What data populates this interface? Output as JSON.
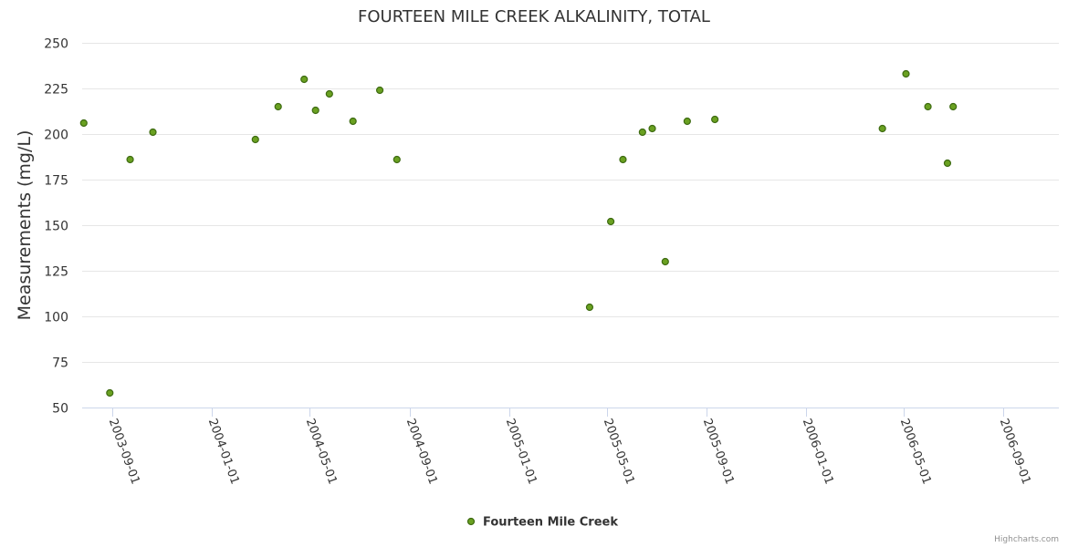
{
  "chart_data": {
    "type": "scatter",
    "title": "FOURTEEN MILE CREEK ALKALINITY, TOTAL",
    "ylabel": "Measurements (mg/L)",
    "ylim": [
      50,
      250
    ],
    "yticks": [
      50,
      75,
      100,
      125,
      150,
      175,
      200,
      225,
      250
    ],
    "xlim": [
      "2003-07-26",
      "2006-11-08"
    ],
    "xticks": [
      "2003-09-01",
      "2004-01-01",
      "2004-05-01",
      "2004-09-01",
      "2005-01-01",
      "2005-05-01",
      "2005-09-01",
      "2006-01-01",
      "2006-05-01",
      "2006-09-01"
    ],
    "grid": true,
    "legend_position": "bottom-center",
    "series": [
      {
        "name": "Fourteen Mile Creek",
        "color": "#6aa121",
        "points": [
          {
            "x": "2003-07-28",
            "y": 206
          },
          {
            "x": "2003-08-29",
            "y": 58
          },
          {
            "x": "2003-09-23",
            "y": 186
          },
          {
            "x": "2003-10-21",
            "y": 201
          },
          {
            "x": "2004-02-24",
            "y": 197
          },
          {
            "x": "2004-03-23",
            "y": 215
          },
          {
            "x": "2004-04-24",
            "y": 230
          },
          {
            "x": "2004-05-08",
            "y": 213
          },
          {
            "x": "2004-05-25",
            "y": 222
          },
          {
            "x": "2004-06-23",
            "y": 207
          },
          {
            "x": "2004-07-26",
            "y": 224
          },
          {
            "x": "2004-08-16",
            "y": 186
          },
          {
            "x": "2005-04-10",
            "y": 105
          },
          {
            "x": "2005-05-06",
            "y": 152
          },
          {
            "x": "2005-05-21",
            "y": 186
          },
          {
            "x": "2005-06-14",
            "y": 201
          },
          {
            "x": "2005-06-26",
            "y": 203
          },
          {
            "x": "2005-07-12",
            "y": 130
          },
          {
            "x": "2005-08-08",
            "y": 207
          },
          {
            "x": "2005-09-11",
            "y": 208
          },
          {
            "x": "2006-04-05",
            "y": 203
          },
          {
            "x": "2006-05-04",
            "y": 233
          },
          {
            "x": "2006-05-31",
            "y": 215
          },
          {
            "x": "2006-06-24",
            "y": 184
          },
          {
            "x": "2006-07-01",
            "y": 215
          }
        ]
      }
    ]
  },
  "credits": "Highcharts.com"
}
